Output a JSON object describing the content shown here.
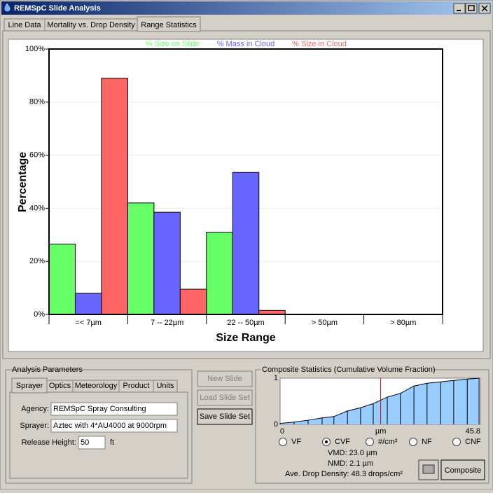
{
  "window": {
    "title": "REMSpC Slide Analysis"
  },
  "tabs": [
    "Line Data",
    "Mortality vs. Drop Density",
    "Range Statistics"
  ],
  "chart_data": [
    {
      "type": "bar",
      "xlabel": "Size Range",
      "ylabel": "Percentage",
      "categories": [
        "=< 7µm",
        "7 -- 22µm",
        "22 -- 50µm",
        "> 50µm",
        "> 80µm"
      ],
      "series": [
        {
          "name": "% Size on Slide",
          "color": "#66ff66",
          "values": [
            26.5,
            42,
            31,
            0,
            0
          ]
        },
        {
          "name": "% Mass in Cloud",
          "color": "#6666ff",
          "values": [
            8,
            38.5,
            53.5,
            0,
            0
          ]
        },
        {
          "name": "% Size in Cloud",
          "color": "#ff6666",
          "values": [
            89,
            9.5,
            1.5,
            0,
            0
          ]
        }
      ],
      "ylim": [
        0,
        100
      ],
      "yticks": [
        {
          "value": 0,
          "label": "0%"
        },
        {
          "value": 20,
          "label": "20%"
        },
        {
          "value": 40,
          "label": "40%"
        },
        {
          "value": 60,
          "label": "60%"
        },
        {
          "value": 80,
          "label": "80%"
        },
        {
          "value": 100,
          "label": "100%"
        }
      ],
      "grid": true
    },
    {
      "type": "area",
      "title": "Composite Statistics  (Cumulative Volume Fraction)",
      "xlabel": "µm",
      "color": "#99ccff",
      "x": [
        0,
        3.2,
        6.4,
        9.6,
        12.3,
        15.4,
        18.4,
        21.3,
        24.5,
        27.5,
        30.6,
        33.6,
        36.7,
        39.7,
        42.8,
        45.5
      ],
      "values": [
        0.02,
        0.05,
        0.09,
        0.14,
        0.17,
        0.29,
        0.36,
        0.45,
        0.59,
        0.67,
        0.83,
        0.89,
        0.92,
        0.95,
        0.98,
        1.0
      ],
      "xlim": [
        0,
        45.8
      ],
      "xticks": [
        0,
        45.8
      ],
      "ylim": [
        0,
        1
      ],
      "yticks": [
        0,
        1
      ],
      "marker": {
        "x": 23.0,
        "color": "#cc0000"
      }
    }
  ],
  "analysis_parameters": {
    "title": "Analysis Parameters",
    "tabs": [
      "Sprayer",
      "Optics",
      "Meteorology",
      "Product",
      "Units"
    ],
    "fields": [
      {
        "label": "Agency:",
        "value": "REMSpC Spray Consulting"
      },
      {
        "label": "Sprayer:",
        "value": "Aztec with 4*AU4000 at 9000rpm"
      },
      {
        "label": "Release Height:",
        "value": "50",
        "unit": "ft"
      }
    ]
  },
  "buttons": [
    {
      "label": "New Slide",
      "enabled": false
    },
    {
      "label": "Load Slide Set",
      "enabled": false
    },
    {
      "label": "Save Slide Set",
      "enabled": true
    }
  ],
  "composite": {
    "options": [
      {
        "label": "VF",
        "checked": false
      },
      {
        "label": "CVF",
        "checked": true
      },
      {
        "label": "#/cm²",
        "checked": false
      },
      {
        "label": "NF",
        "checked": false
      },
      {
        "label": "CNF",
        "checked": false
      }
    ],
    "stats": [
      "VMD:  23.0 µm",
      "NMD:  2.1 µm",
      "Ave. Drop Density:  48.3 drops/cm²"
    ],
    "button": "Composite"
  }
}
